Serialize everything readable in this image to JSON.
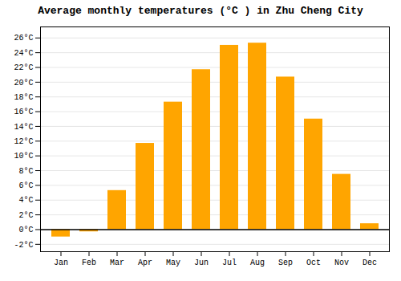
{
  "chart_data": {
    "type": "bar",
    "title": "Average monthly temperatures (°C ) in Zhu Cheng City",
    "categories": [
      "Jan",
      "Feb",
      "Mar",
      "Apr",
      "May",
      "Jun",
      "Jul",
      "Aug",
      "Sep",
      "Oct",
      "Nov",
      "Dec"
    ],
    "values": [
      -1.0,
      -0.3,
      5.3,
      11.7,
      17.3,
      21.7,
      25.0,
      25.3,
      20.7,
      15.0,
      7.5,
      0.8
    ],
    "color": "#FFA500",
    "ylim": [
      -3.0,
      27.5
    ],
    "yticks": [
      {
        "value": -2,
        "label": "-2°C"
      },
      {
        "value": 0,
        "label": "0°C"
      },
      {
        "value": 2,
        "label": "2°C"
      },
      {
        "value": 4,
        "label": "4°C"
      },
      {
        "value": 6,
        "label": "6°C"
      },
      {
        "value": 8,
        "label": "8°C"
      },
      {
        "value": 10,
        "label": "10°C"
      },
      {
        "value": 12,
        "label": "12°C"
      },
      {
        "value": 14,
        "label": "14°C"
      },
      {
        "value": 16,
        "label": "16°C"
      },
      {
        "value": 18,
        "label": "18°C"
      },
      {
        "value": 20,
        "label": "20°C"
      },
      {
        "value": 22,
        "label": "22°C"
      },
      {
        "value": 24,
        "label": "24°C"
      },
      {
        "value": 26,
        "label": "26°C"
      }
    ],
    "grid": true
  }
}
